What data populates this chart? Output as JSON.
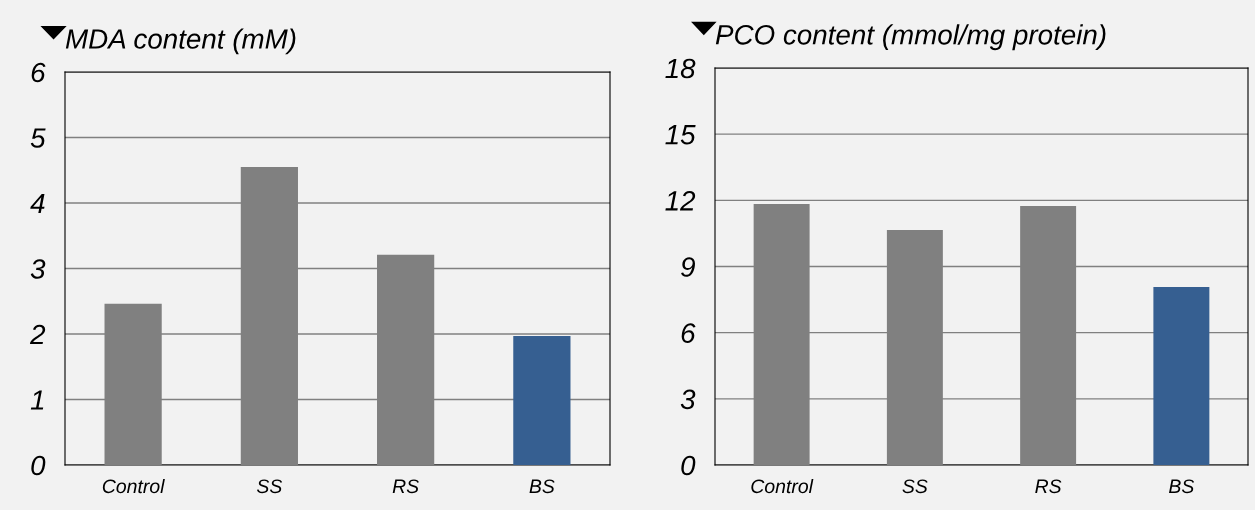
{
  "chart_data": [
    {
      "type": "bar",
      "title": "MDA content (mM)",
      "categories": [
        "Control",
        "SS",
        "RS",
        "BS"
      ],
      "values": [
        2.46,
        4.55,
        3.21,
        1.97
      ],
      "colors": [
        "#808080",
        "#808080",
        "#808080",
        "#365f91"
      ],
      "ylim": [
        0,
        6
      ],
      "yticks": [
        0,
        1,
        2,
        3,
        4,
        5,
        6
      ],
      "grid": "y",
      "legend": false
    },
    {
      "type": "bar",
      "title": "PCO content (mmol/mg protein)",
      "categories": [
        "Control",
        "SS",
        "RS",
        "BS"
      ],
      "values": [
        11.83,
        10.65,
        11.74,
        8.07
      ],
      "colors": [
        "#808080",
        "#808080",
        "#808080",
        "#365f91"
      ],
      "ylim": [
        0,
        18
      ],
      "yticks": [
        0,
        3,
        6,
        9,
        12,
        15,
        18
      ],
      "grid": "y",
      "legend": false
    }
  ]
}
